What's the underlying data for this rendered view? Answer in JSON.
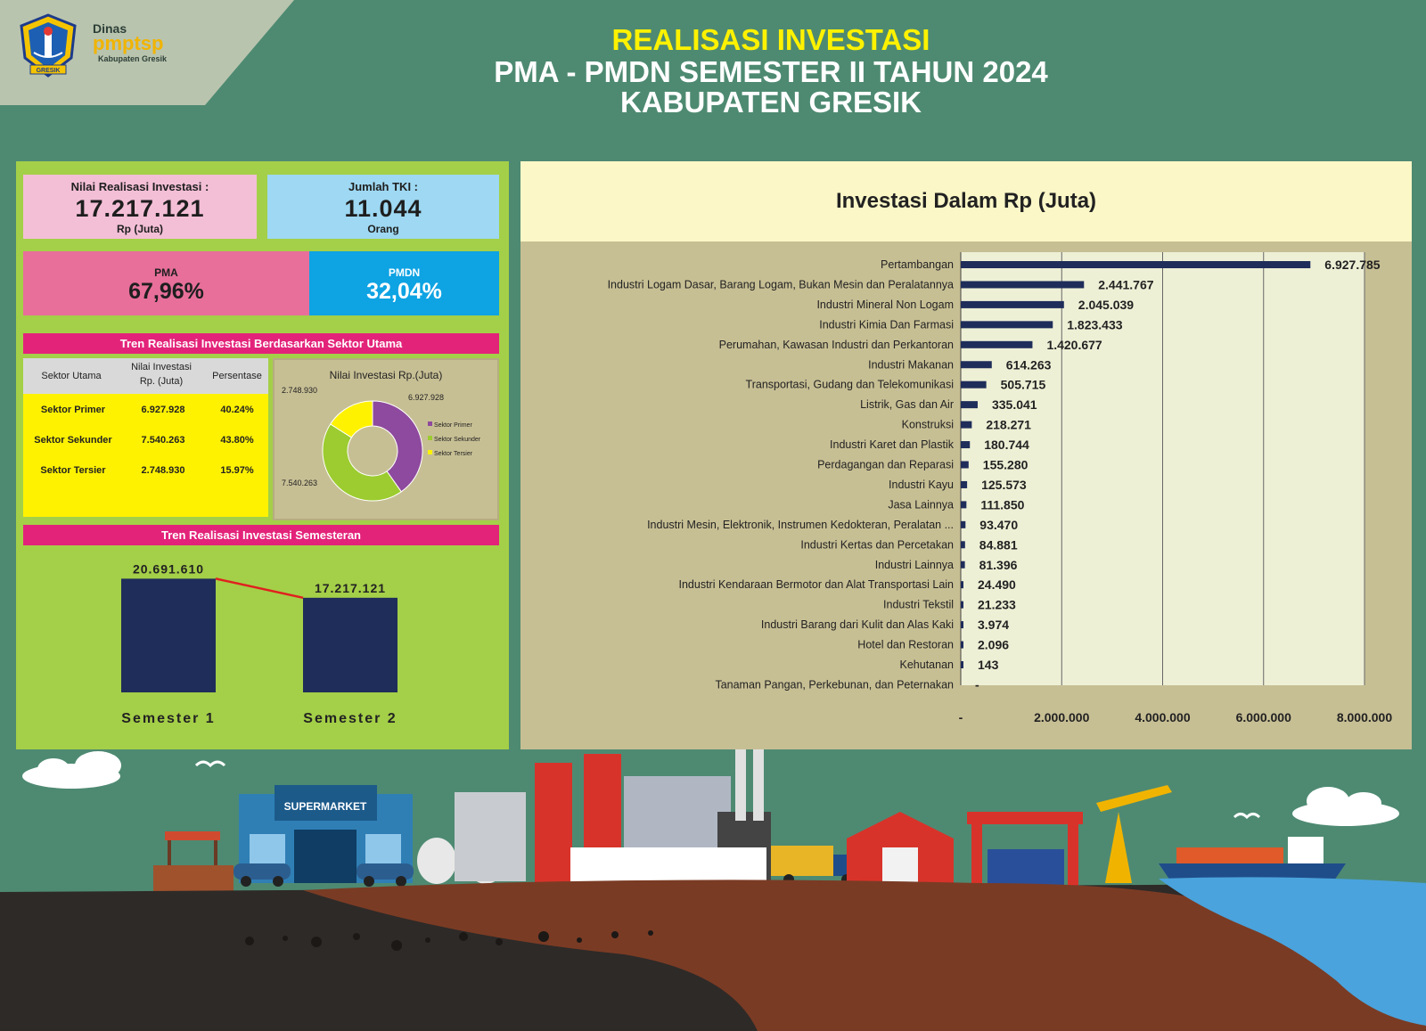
{
  "header": {
    "logo_line1": "Dinas",
    "logo_line2": "pmptsp",
    "logo_line3": "Kabupaten Gresik",
    "logo_emblem_text": "GRESIK",
    "title_line1": "REALISASI INVESTASI",
    "title_line2": "PMA - PMDN SEMESTER II TAHUN 2024",
    "title_line3": "KABUPATEN GRESIK"
  },
  "summary": {
    "nilai_label": "Nilai Realisasi Investasi :",
    "nilai_value": "17.217.121",
    "nilai_unit": "Rp (Juta)",
    "tki_label": "Jumlah TKI :",
    "tki_value": "11.044",
    "tki_unit": "Orang",
    "pma_label": "PMA",
    "pma_value": "67,96%",
    "pmdn_label": "PMDN",
    "pmdn_value": "32,04%"
  },
  "sektor": {
    "header": "Tren Realisasi Investasi Berdasarkan Sektor Utama",
    "col_sektor": "Sektor Utama",
    "col_nilai_1": "Nilai Investasi",
    "col_nilai_2": "Rp. (Juta)",
    "col_persen": "Persentase",
    "rows": [
      {
        "name": "Sektor Primer",
        "nilai": "6.927.928",
        "persen": "40.24%"
      },
      {
        "name": "Sektor Sekunder",
        "nilai": "7.540.263",
        "persen": "43.80%"
      },
      {
        "name": "Sektor Tersier",
        "nilai": "2.748.930",
        "persen": "15.97%"
      }
    ]
  },
  "semester_header": "Tren Realisasi Investasi Semesteran",
  "scene_label": "SUPERMARKET",
  "colors": {
    "background": "#4e8a72",
    "panel_green": "#a4cf48",
    "pink": "#e3237a",
    "bar_navy": "#1f2d5a",
    "donut_primer": "#8e4a9e",
    "donut_sekunder": "#9ccc2f",
    "donut_tersier": "#fff200"
  },
  "chart_data": [
    {
      "type": "pie",
      "title": "Nilai Investasi Rp.(Juta)",
      "labels": [
        "Sektor Primer",
        "Sektor Sekunder",
        "Sektor Tersier"
      ],
      "value_labels": [
        "6.927.928",
        "7.540.263",
        "2.748.930"
      ],
      "values": [
        6927928,
        7540263,
        2748930
      ],
      "donut": true,
      "legend": "right"
    },
    {
      "type": "bar",
      "categories": [
        "Semester 1",
        "Semester 2"
      ],
      "values": [
        20691610,
        17217121
      ],
      "value_labels": [
        "20.691.610",
        "17.217.121"
      ],
      "trend_line": true,
      "ylim": [
        0,
        24000000
      ]
    },
    {
      "type": "bar",
      "orientation": "horizontal",
      "title": "Investasi Dalam Rp (Juta)",
      "categories": [
        "Pertambangan",
        "Industri Logam Dasar, Barang Logam, Bukan Mesin dan Peralatannya",
        "Industri Mineral Non Logam",
        "Industri Kimia Dan Farmasi",
        "Perumahan, Kawasan  Industri dan Perkantoran",
        "Industri Makanan",
        "Transportasi, Gudang dan Telekomunikasi",
        "Listrik, Gas dan Air",
        "Konstruksi",
        "Industri Karet dan Plastik",
        "Perdagangan  dan Reparasi",
        "Industri Kayu",
        "Jasa Lainnya",
        "Industri  Mesin,  Elektronik,  Instrumen Kedokteran, Peralatan ...",
        "Industri Kertas dan Percetakan",
        "Industri Lainnya",
        "Industri Kendaraan  Bermotor dan Alat Transportasi  Lain",
        "Industri Tekstil",
        "Industri Barang  dari Kulit dan Alas Kaki",
        "Hotel dan Restoran",
        "Kehutanan",
        "Tanaman  Pangan,  Perkebunan,  dan Peternakan"
      ],
      "values": [
        6927785,
        2441767,
        2045039,
        1823433,
        1420677,
        614263,
        505715,
        335041,
        218271,
        180744,
        155280,
        125573,
        111850,
        93470,
        84881,
        81396,
        24490,
        21233,
        3974,
        2096,
        143,
        0
      ],
      "value_labels": [
        "6.927.785",
        "2.441.767",
        "2.045.039",
        "1.823.433",
        "1.420.677",
        "614.263",
        "505.715",
        "335.041",
        "218.271",
        "180.744",
        "155.280",
        "125.573",
        "111.850",
        "93.470",
        "84.881",
        "81.396",
        "24.490",
        "21.233",
        "3.974",
        "2.096",
        "143",
        "-"
      ],
      "xlim": [
        0,
        8000000
      ],
      "x_ticks": [
        0,
        2000000,
        4000000,
        6000000,
        8000000
      ],
      "x_tick_labels": [
        "-",
        "2.000.000",
        "4.000.000",
        "6.000.000",
        "8.000.000"
      ],
      "grid": true
    }
  ]
}
